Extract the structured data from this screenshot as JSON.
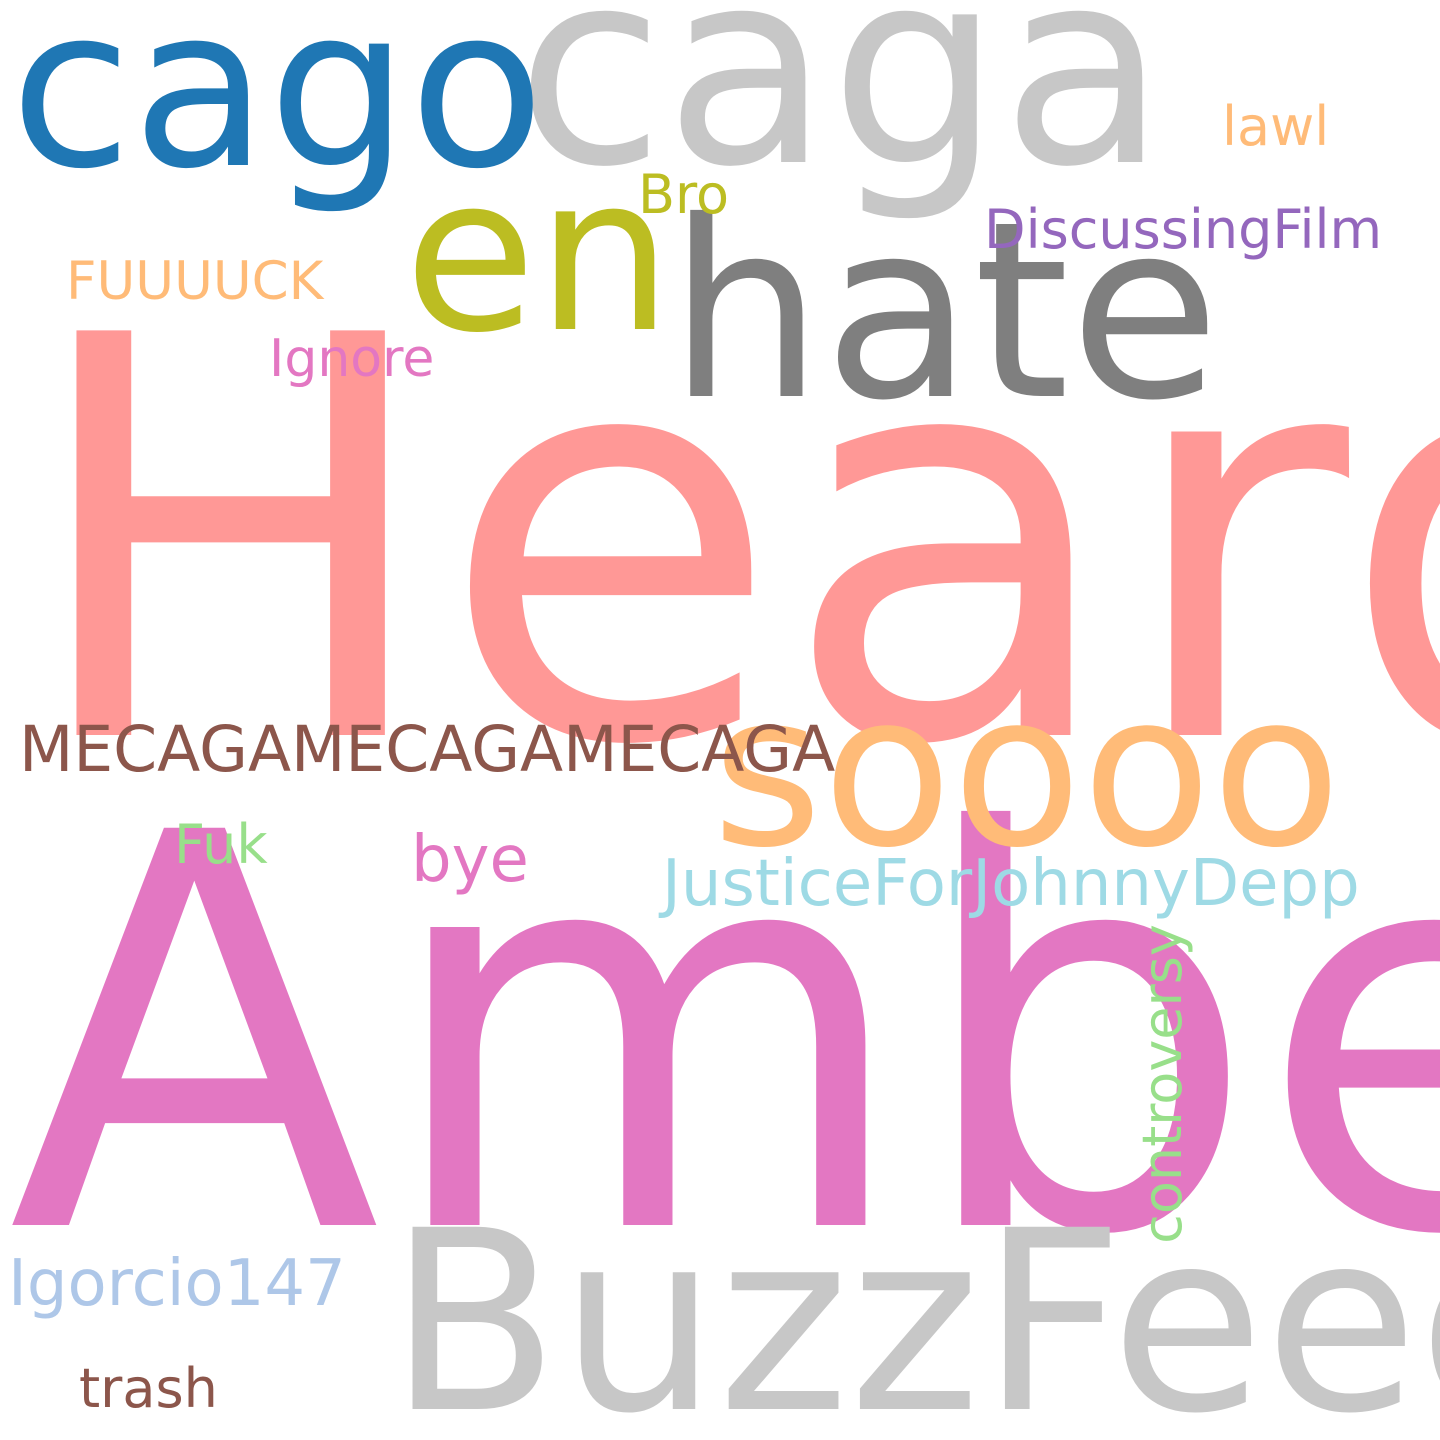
{
  "words": {
    "heard": {
      "text": "Heard",
      "color": "#ff9896"
    },
    "amber": {
      "text": "Amber",
      "color": "#e377c2"
    },
    "caga": {
      "text": "caga",
      "color": "#c7c7c7"
    },
    "cago": {
      "text": "cago",
      "color": "#1f77b4"
    },
    "en": {
      "text": "en",
      "color": "#bcbd22"
    },
    "hate": {
      "text": "hate",
      "color": "#7f7f7f"
    },
    "soooo": {
      "text": "soooo",
      "color": "#ffbb78"
    },
    "buzzfeed": {
      "text": "BuzzFeed",
      "color": "#c7c7c7"
    },
    "mecagame": {
      "text": "MECAGAMECAGAMECAGA",
      "color": "#8c564b"
    },
    "justice": {
      "text": "JusticeForJohnnyDepp",
      "color": "#9edae5"
    },
    "discussing": {
      "text": "DiscussingFilm",
      "color": "#9467bd"
    },
    "fuuuuck": {
      "text": "FUUUUCK",
      "color": "#ffbb78"
    },
    "ignore": {
      "text": "Ignore",
      "color": "#e377c2"
    },
    "bro": {
      "text": "Bro",
      "color": "#bcbd22"
    },
    "lawl": {
      "text": "lawl",
      "color": "#ffbb78"
    },
    "fuk": {
      "text": "Fuk",
      "color": "#98df8a"
    },
    "bye": {
      "text": "bye",
      "color": "#e377c2"
    },
    "controversy": {
      "text": "controversy",
      "color": "#98df8a"
    },
    "igorcio": {
      "text": "Igorcio147",
      "color": "#aec7e8"
    },
    "trash": {
      "text": "trash",
      "color": "#8c564b"
    }
  }
}
